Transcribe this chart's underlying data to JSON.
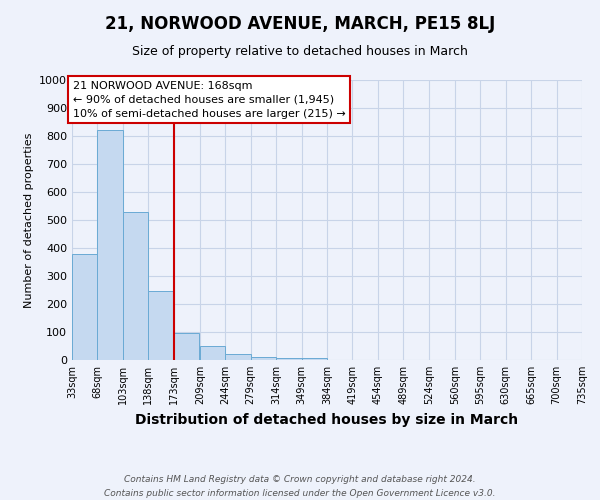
{
  "title_line1": "21, NORWOOD AVENUE, MARCH, PE15 8LJ",
  "title_line2": "Size of property relative to detached houses in March",
  "xlabel": "Distribution of detached houses by size in March",
  "ylabel": "Number of detached properties",
  "footer_line1": "Contains HM Land Registry data © Crown copyright and database right 2024.",
  "footer_line2": "Contains public sector information licensed under the Open Government Licence v3.0.",
  "annotation_line1": "21 NORWOOD AVENUE: 168sqm",
  "annotation_line2": "← 90% of detached houses are smaller (1,945)",
  "annotation_line3": "10% of semi-detached houses are larger (215) →",
  "property_line_x": 173,
  "bin_edges": [
    33,
    68,
    103,
    138,
    173,
    209,
    244,
    279,
    314,
    349,
    384,
    419,
    454,
    489,
    524,
    560,
    595,
    630,
    665,
    700,
    735
  ],
  "bar_heights": [
    380,
    820,
    530,
    245,
    95,
    50,
    20,
    12,
    8,
    7,
    0,
    0,
    0,
    0,
    0,
    0,
    0,
    0,
    0,
    0
  ],
  "bar_color": "#c5d9f0",
  "bar_edge_color": "#6aaad4",
  "vline_color": "#cc0000",
  "grid_color": "#c8d4e8",
  "background_color": "#eef2fb",
  "ylim": [
    0,
    1000
  ],
  "yticks": [
    0,
    100,
    200,
    300,
    400,
    500,
    600,
    700,
    800,
    900,
    1000
  ],
  "title1_fontsize": 12,
  "title2_fontsize": 9,
  "xlabel_fontsize": 10,
  "ylabel_fontsize": 8,
  "ytick_fontsize": 8,
  "xtick_fontsize": 7,
  "annot_fontsize": 8,
  "footer_fontsize": 6.5
}
